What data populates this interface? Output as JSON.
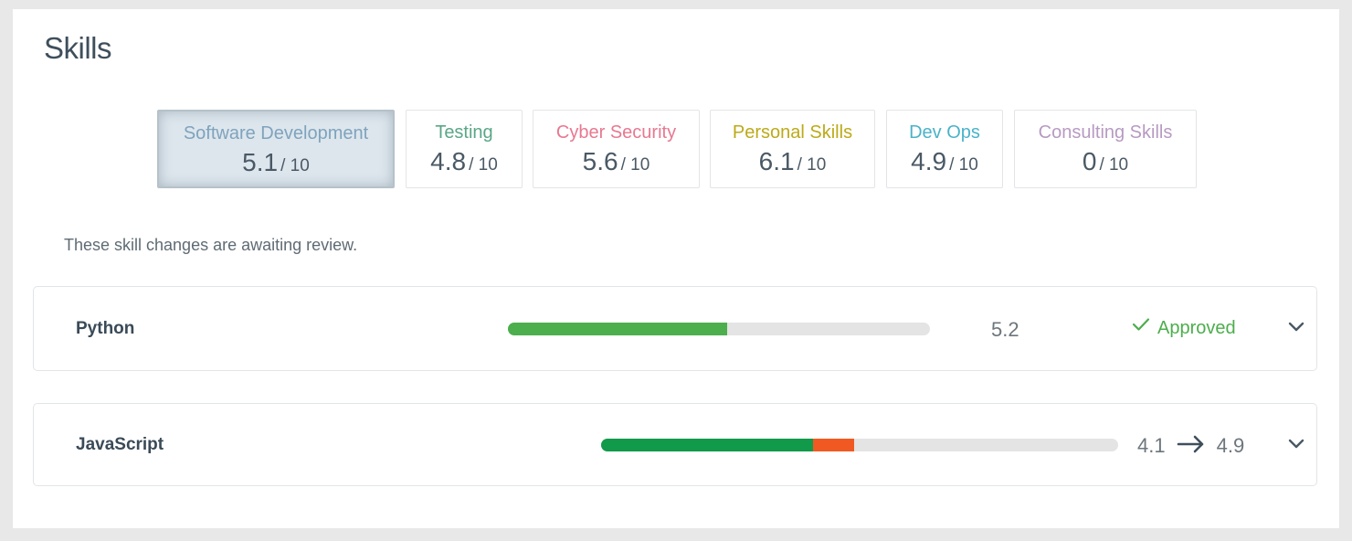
{
  "page": {
    "title": "Skills"
  },
  "tabs": [
    {
      "name": "Software Development",
      "score": "5.1",
      "max": "/ 10",
      "color": "#7fa3bd",
      "active": true
    },
    {
      "name": "Testing",
      "score": "4.8",
      "max": "/ 10",
      "color": "#5aa687",
      "active": false
    },
    {
      "name": "Cyber Security",
      "score": "5.6",
      "max": "/ 10",
      "color": "#e87890",
      "active": false
    },
    {
      "name": "Personal Skills",
      "score": "6.1",
      "max": "/ 10",
      "color": "#bcaa18",
      "active": false
    },
    {
      "name": "Dev Ops",
      "score": "4.9",
      "max": "/ 10",
      "color": "#4ab3c9",
      "active": false
    },
    {
      "name": "Consulting Skills",
      "score": "0",
      "max": "/ 10",
      "color": "#b79ac2",
      "active": false
    }
  ],
  "review_note": "These skill changes are awaiting review.",
  "skills": [
    {
      "name": "Python",
      "value": "5.2",
      "bar_fraction": 0.52,
      "bar_color": "#4cae4c",
      "status_label": "Approved",
      "status_color": "#4cae4c",
      "status_icon": "check-icon",
      "expand_icon": "chevron-down-icon"
    },
    {
      "name": "JavaScript",
      "value_from": "4.1",
      "value_to": "4.9",
      "bar_base_fraction": 0.41,
      "bar_delta_fraction": 0.08,
      "bar_base_color": "#109a4a",
      "bar_delta_color": "#f05a22",
      "change_icon": "arrow-right-icon",
      "expand_icon": "chevron-down-icon"
    }
  ],
  "colors": {
    "track": "#e4e4e4",
    "title": "#3e4f5c"
  }
}
